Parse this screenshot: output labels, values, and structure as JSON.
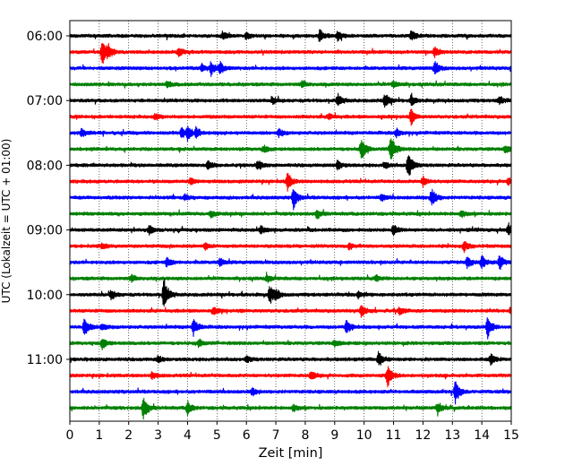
{
  "chart_data": {
    "type": "line",
    "xlabel": "Zeit  [min]",
    "ylabel": "UTC (Lokalzeit = UTC + 01:00)",
    "xlim": [
      0,
      15
    ],
    "x_ticks": [
      "0",
      "1",
      "2",
      "3",
      "4",
      "5",
      "6",
      "7",
      "8",
      "9",
      "10",
      "11",
      "12",
      "13",
      "14",
      "15"
    ],
    "y_tick_labels": [
      "06:00",
      "07:00",
      "08:00",
      "09:00",
      "10:00",
      "11:00"
    ],
    "grid": "vertical dotted",
    "trace_colors": [
      "#000000",
      "#ff0000",
      "#0000ff",
      "#008000"
    ],
    "traces": [
      {
        "start": "06:00",
        "events": [
          [
            5.2,
            0.5
          ],
          [
            6.0,
            0.4
          ],
          [
            8.5,
            0.8
          ],
          [
            9.1,
            0.6
          ],
          [
            11.6,
            0.6
          ]
        ]
      },
      {
        "start": "06:15",
        "events": [
          [
            1.1,
            1.6
          ],
          [
            1.3,
            0.7
          ],
          [
            3.7,
            0.5
          ],
          [
            12.4,
            0.6
          ]
        ]
      },
      {
        "start": "06:30",
        "events": [
          [
            4.8,
            0.8
          ],
          [
            5.1,
            0.7
          ],
          [
            12.4,
            0.9
          ],
          [
            4.5,
            0.5
          ]
        ]
      },
      {
        "start": "06:45",
        "events": [
          [
            3.3,
            0.4
          ],
          [
            7.9,
            0.4
          ],
          [
            11.0,
            0.4
          ]
        ]
      },
      {
        "start": "07:00",
        "events": [
          [
            9.1,
            0.8
          ],
          [
            10.7,
            0.9
          ],
          [
            11.6,
            0.6
          ],
          [
            14.6,
            0.5
          ],
          [
            6.9,
            0.4
          ]
        ]
      },
      {
        "start": "07:15",
        "events": [
          [
            11.6,
            0.9
          ],
          [
            2.9,
            0.4
          ],
          [
            8.8,
            0.4
          ]
        ]
      },
      {
        "start": "07:30",
        "events": [
          [
            4.0,
            0.8
          ],
          [
            4.3,
            0.7
          ],
          [
            3.8,
            0.6
          ],
          [
            0.4,
            0.5
          ],
          [
            7.1,
            0.5
          ],
          [
            11.1,
            0.5
          ]
        ]
      },
      {
        "start": "07:45",
        "events": [
          [
            9.9,
            1.4
          ],
          [
            10.9,
            1.9
          ],
          [
            14.8,
            0.5
          ],
          [
            6.6,
            0.4
          ]
        ]
      },
      {
        "start": "08:00",
        "events": [
          [
            11.5,
            1.8
          ],
          [
            9.1,
            0.6
          ],
          [
            4.7,
            0.5
          ],
          [
            6.4,
            0.6
          ],
          [
            10.7,
            0.4
          ]
        ]
      },
      {
        "start": "08:15",
        "events": [
          [
            7.4,
            1.1
          ],
          [
            12.0,
            0.6
          ],
          [
            14.9,
            0.5
          ],
          [
            4.1,
            0.4
          ]
        ]
      },
      {
        "start": "08:30",
        "events": [
          [
            7.6,
            1.3
          ],
          [
            12.3,
            1.2
          ],
          [
            3.9,
            0.4
          ],
          [
            10.6,
            0.4
          ]
        ]
      },
      {
        "start": "08:45",
        "events": [
          [
            8.4,
            0.5
          ],
          [
            4.8,
            0.4
          ],
          [
            13.3,
            0.4
          ]
        ]
      },
      {
        "start": "09:00",
        "events": [
          [
            11.0,
            0.6
          ],
          [
            14.9,
            0.8
          ],
          [
            2.7,
            0.5
          ],
          [
            6.5,
            0.5
          ]
        ]
      },
      {
        "start": "09:15",
        "events": [
          [
            13.4,
            0.6
          ],
          [
            1.1,
            0.4
          ],
          [
            4.6,
            0.4
          ],
          [
            9.5,
            0.4
          ]
        ]
      },
      {
        "start": "09:30",
        "events": [
          [
            14.0,
            0.8
          ],
          [
            14.6,
            0.9
          ],
          [
            13.5,
            0.7
          ],
          [
            3.3,
            0.6
          ],
          [
            5.1,
            0.5
          ]
        ]
      },
      {
        "start": "09:45",
        "events": [
          [
            2.1,
            0.4
          ],
          [
            6.7,
            0.4
          ],
          [
            10.4,
            0.4
          ]
        ]
      },
      {
        "start": "10:00",
        "events": [
          [
            3.2,
            2.1
          ],
          [
            6.8,
            1.2
          ],
          [
            1.4,
            0.6
          ],
          [
            7.0,
            0.5
          ],
          [
            9.8,
            0.4
          ]
        ]
      },
      {
        "start": "10:15",
        "events": [
          [
            9.9,
            0.7
          ],
          [
            15.0,
            0.6
          ],
          [
            4.9,
            0.4
          ],
          [
            11.2,
            0.4
          ]
        ]
      },
      {
        "start": "10:30",
        "events": [
          [
            0.5,
            1.2
          ],
          [
            4.2,
            1.1
          ],
          [
            9.4,
            0.9
          ],
          [
            14.2,
            1.3
          ],
          [
            1.1,
            0.5
          ]
        ]
      },
      {
        "start": "10:45",
        "events": [
          [
            1.1,
            0.7
          ],
          [
            4.4,
            0.4
          ],
          [
            9.0,
            0.4
          ]
        ]
      },
      {
        "start": "11:00",
        "events": [
          [
            10.5,
            1.0
          ],
          [
            14.3,
            0.7
          ],
          [
            6.0,
            0.4
          ],
          [
            3.0,
            0.4
          ]
        ]
      },
      {
        "start": "11:15",
        "events": [
          [
            10.8,
            1.3
          ],
          [
            8.2,
            0.5
          ],
          [
            2.8,
            0.4
          ]
        ]
      },
      {
        "start": "11:30",
        "events": [
          [
            13.1,
            1.4
          ],
          [
            6.2,
            0.4
          ]
        ]
      },
      {
        "start": "11:45",
        "events": [
          [
            2.5,
            1.4
          ],
          [
            4.0,
            0.8
          ],
          [
            12.5,
            0.8
          ],
          [
            7.6,
            0.4
          ]
        ]
      }
    ]
  }
}
